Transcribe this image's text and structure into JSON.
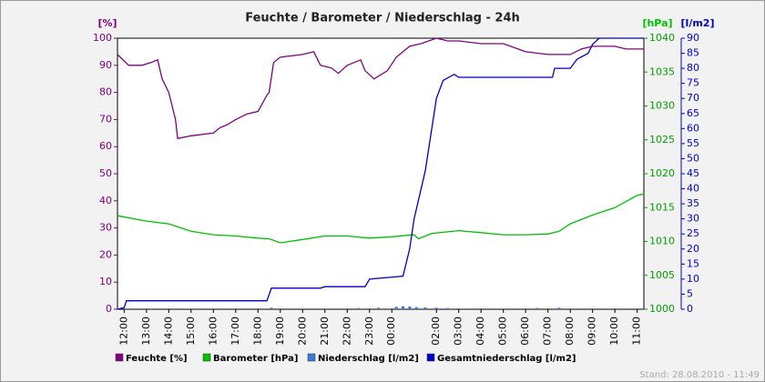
{
  "chart_data": {
    "type": "line",
    "title": "Feuchte / Barometer / Niederschlag - 24h",
    "y_label": "[%]",
    "y2_label": "[hPa]",
    "y3_label": "[l/m2]",
    "timestamp": "Stand: 28.08.2010 - 11:49",
    "xlim": [
      -0.3,
      23.3
    ],
    "xticks": [
      {
        "value": 0,
        "label": "12:00"
      },
      {
        "value": 1,
        "label": "13:00"
      },
      {
        "value": 2,
        "label": "14:00"
      },
      {
        "value": 3,
        "label": "15:00"
      },
      {
        "value": 4,
        "label": "16:00"
      },
      {
        "value": 5,
        "label": "17:00"
      },
      {
        "value": 6,
        "label": "18:00"
      },
      {
        "value": 7,
        "label": "19:00"
      },
      {
        "value": 8,
        "label": "20:00"
      },
      {
        "value": 9,
        "label": "21:00"
      },
      {
        "value": 10,
        "label": "22:00"
      },
      {
        "value": 11,
        "label": "23:00"
      },
      {
        "value": 12,
        "label": "00:00"
      },
      {
        "value": 14,
        "label": "02:00"
      },
      {
        "value": 15,
        "label": "03:00"
      },
      {
        "value": 16,
        "label": "04:00"
      },
      {
        "value": 17,
        "label": "05:00"
      },
      {
        "value": 18,
        "label": "06:00"
      },
      {
        "value": 19,
        "label": "07:00"
      },
      {
        "value": 20,
        "label": "08:00"
      },
      {
        "value": 21,
        "label": "09:00"
      },
      {
        "value": 22,
        "label": "10:00"
      },
      {
        "value": 23,
        "label": "11:00"
      }
    ],
    "ylim": [
      0,
      100
    ],
    "yticks": [
      0,
      10,
      20,
      30,
      40,
      50,
      60,
      70,
      80,
      90,
      100
    ],
    "y2lim": [
      1000,
      1040
    ],
    "y2ticks": [
      1000,
      1005,
      1010,
      1015,
      1020,
      1025,
      1030,
      1035,
      1040
    ],
    "y3lim": [
      0,
      90
    ],
    "y3ticks": [
      0,
      5,
      10,
      15,
      20,
      25,
      30,
      35,
      40,
      45,
      50,
      55,
      60,
      65,
      70,
      75,
      80,
      85,
      90
    ],
    "series": [
      {
        "name": "Feuchte [%]",
        "type": "line",
        "axis": "y",
        "color": "#800080",
        "x": [
          -0.3,
          0.2,
          0.8,
          1.2,
          1.5,
          1.7,
          2.0,
          2.3,
          2.4,
          3,
          4,
          4.3,
          4.6,
          5,
          5.5,
          6,
          6.4,
          6.5,
          6.7,
          7,
          8,
          8.5,
          8.8,
          9.3,
          9.6,
          10,
          10.6,
          10.8,
          11.2,
          11.8,
          12.2,
          12.8,
          13.3,
          14,
          14.5,
          15,
          16,
          17,
          18,
          19,
          20,
          20.5,
          21,
          22,
          22.5,
          23.3
        ],
        "values": [
          94,
          90,
          90,
          91,
          92,
          85,
          80,
          70,
          63,
          64,
          65,
          67,
          68,
          70,
          72,
          73,
          79,
          80,
          91,
          93,
          94,
          95,
          90,
          89,
          87,
          90,
          92,
          88,
          85,
          88,
          93,
          97,
          98,
          100,
          99,
          99,
          98,
          98,
          95,
          94,
          94,
          96,
          97,
          97,
          96,
          96
        ]
      },
      {
        "name": "Barometer [hPa]",
        "type": "line",
        "axis": "y2",
        "color": "#00c000",
        "x": [
          -0.3,
          1,
          2,
          3,
          4,
          5,
          6,
          6.5,
          7,
          8,
          9,
          10,
          11,
          12,
          13,
          13.2,
          13.8,
          15,
          16,
          17,
          18,
          19,
          19.5,
          20,
          21,
          22,
          23,
          23.3
        ],
        "values": [
          1013.8,
          1013,
          1012.6,
          1011.5,
          1011,
          1010.8,
          1010.5,
          1010.4,
          1009.8,
          1010.3,
          1010.8,
          1010.8,
          1010.5,
          1010.7,
          1011,
          1010.4,
          1011.2,
          1011.6,
          1011.3,
          1011,
          1011,
          1011.1,
          1011.5,
          1012.6,
          1013.9,
          1015,
          1016.8,
          1017
        ]
      },
      {
        "name": "Niederschlag [l/m2]",
        "type": "bar",
        "axis": "y3",
        "color": "#3c78d8",
        "x": [
          6.6,
          10.5,
          11.4,
          12.2,
          12.5,
          12.8,
          13.1,
          13.5,
          14,
          14.5,
          18.5,
          19.5
        ],
        "values": [
          0.5,
          0.4,
          0.5,
          0.8,
          1,
          0.9,
          0.7,
          0.6,
          0.5,
          0.4,
          0.4,
          0.5
        ]
      },
      {
        "name": "Gesamtniederschlag [l/m2]",
        "type": "line",
        "axis": "y3",
        "color": "#0000cc",
        "x": [
          -0.3,
          0,
          0.1,
          6.4,
          6.6,
          8.8,
          9,
          10.8,
          11,
          12.5,
          12.8,
          13,
          13.5,
          14,
          14.3,
          14.8,
          15,
          19.2,
          19.3,
          20,
          20.3,
          20.8,
          21,
          21.3,
          23.3
        ],
        "values": [
          0,
          0.5,
          2.8,
          2.8,
          7,
          7,
          7.5,
          7.5,
          10,
          11,
          20,
          30,
          46,
          70,
          76,
          78,
          77,
          77,
          80,
          80,
          83,
          85,
          88,
          90,
          90
        ]
      }
    ]
  }
}
